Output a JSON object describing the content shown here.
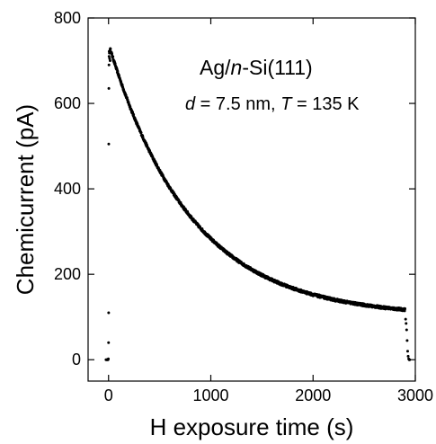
{
  "chart_data": {
    "type": "scatter",
    "title": "",
    "xlabel": "H exposure time (s)",
    "ylabel": "Chemicurrent (pA)",
    "xlim": [
      -200,
      3000
    ],
    "ylim": [
      -50,
      800
    ],
    "xticks": [
      0,
      1000,
      2000,
      3000
    ],
    "yticks": [
      0,
      200,
      400,
      600,
      800
    ],
    "xtick_labels": [
      "0",
      "1000",
      "2000",
      "3000"
    ],
    "ytick_labels": [
      "0",
      "200",
      "400",
      "600",
      "800"
    ],
    "grid": false,
    "legend": "none",
    "marker_color": "#000000",
    "annotation": {
      "line1": {
        "prefix": "Ag/",
        "italic": "n",
        "suffix": "-Si(111)"
      },
      "line2": {
        "d_symbol": "d",
        "d_value": " = 7.5 nm, ",
        "t_symbol": "T",
        "t_value": " = 135 K"
      }
    },
    "series": [
      {
        "points": [
          [
            -25,
            0
          ],
          [
            -20,
            0
          ],
          [
            -15,
            0
          ],
          [
            -10,
            0
          ],
          [
            -5,
            0
          ],
          [
            -2,
            2
          ],
          [
            0,
            40
          ],
          [
            1,
            110
          ],
          [
            2,
            505
          ],
          [
            3,
            635
          ],
          [
            4,
            690
          ],
          [
            5,
            710
          ],
          [
            6,
            722
          ],
          [
            8,
            718
          ],
          [
            10,
            705
          ],
          [
            15,
            700
          ]
        ]
      },
      {
        "decay": {
          "A": 628,
          "tau": 800,
          "offset": 100,
          "t_start": 15,
          "t_end": 2900,
          "step": 2,
          "t0": 15
        }
      },
      {
        "points": [
          [
            2905,
            95
          ],
          [
            2910,
            85
          ],
          [
            2915,
            70
          ],
          [
            2920,
            45
          ],
          [
            2925,
            20
          ],
          [
            2930,
            8
          ],
          [
            2935,
            2
          ],
          [
            2940,
            0
          ],
          [
            2945,
            0
          ]
        ]
      }
    ]
  }
}
